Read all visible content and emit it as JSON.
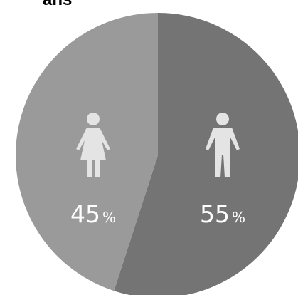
{
  "chart_data": {
    "type": "pie",
    "title": "ans",
    "slices": [
      {
        "label": "",
        "value": 55,
        "display_value": "55",
        "unit": "%",
        "icon": "male-person-icon",
        "color": "#747474"
      },
      {
        "label": "",
        "value": 45,
        "display_value": "45",
        "unit": "%",
        "icon": "female-person-icon",
        "color": "#9a9a9a"
      }
    ],
    "start": "top",
    "direction": "clockwise",
    "colors": {
      "icon": "#e4e4e4",
      "label_text": "#ffffff",
      "background": "#ffffff"
    }
  }
}
